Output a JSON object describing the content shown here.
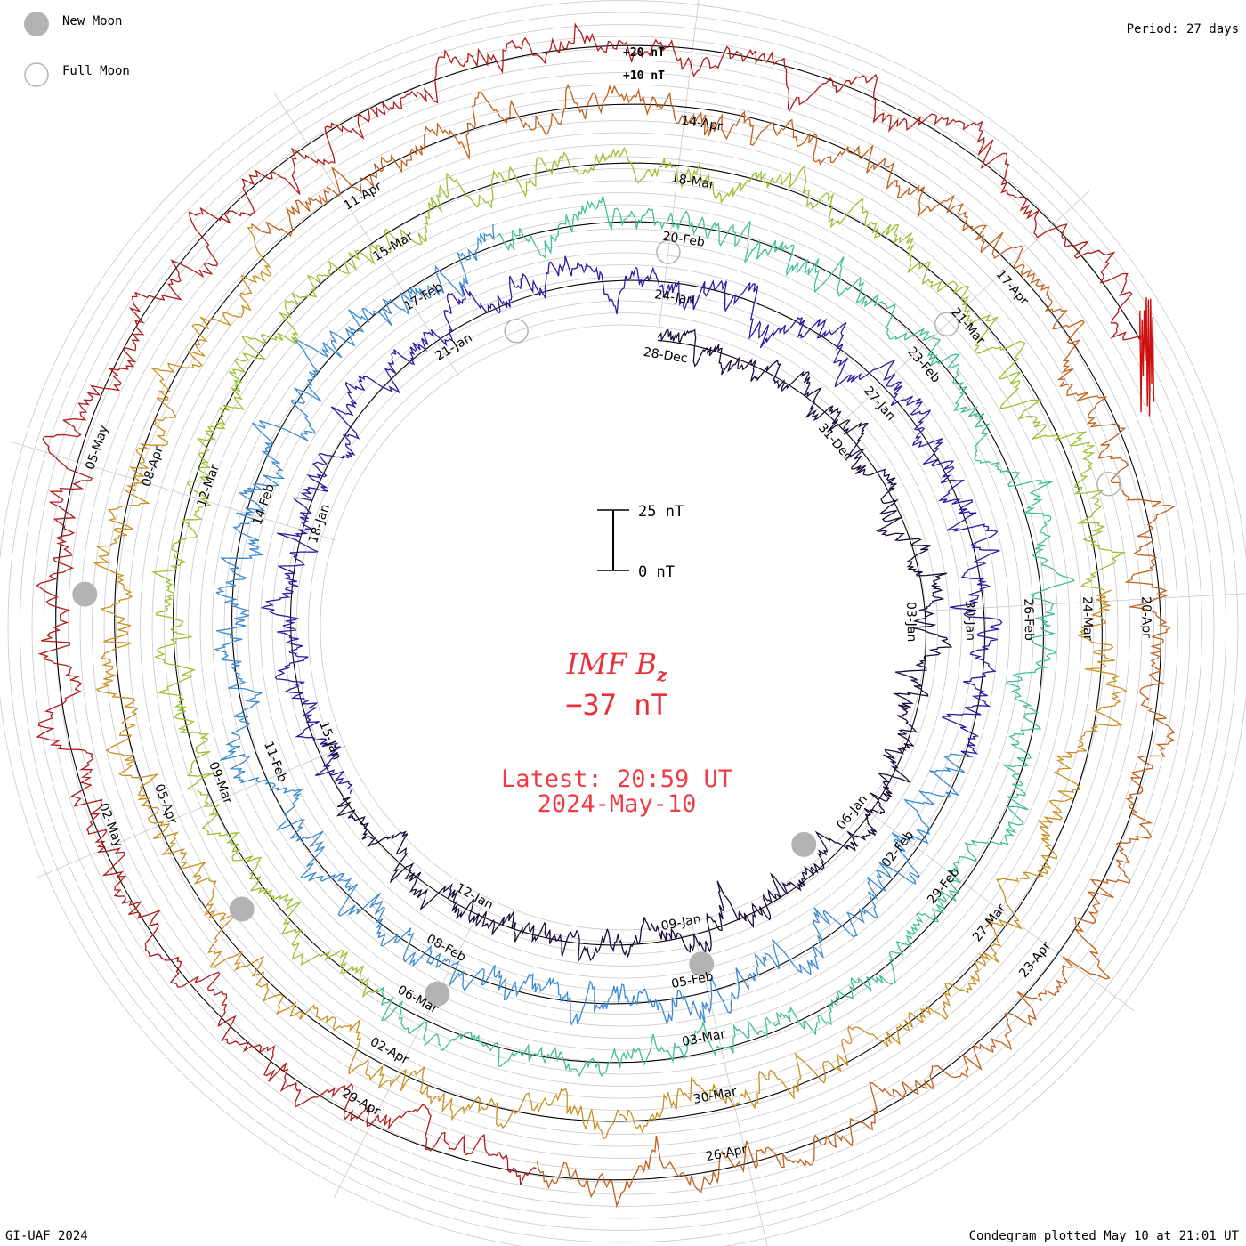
{
  "chart_data": {
    "type": "condegram",
    "title": "IMF Bz",
    "title_base": "IMF B",
    "title_subscript": "z",
    "current_value": "−37 nT",
    "latest_label": "Latest: 20:59 UT",
    "latest_date": "2024-May-10",
    "period_label": "Period: 27 days",
    "credit": "GI-UAF 2024",
    "plotted_label": "Condegram plotted May 10 at 21:01 UT",
    "legend": [
      {
        "name": "New Moon",
        "style": "filled",
        "color": "#b3b3b3"
      },
      {
        "name": "Full Moon",
        "style": "hollow",
        "color": "#b3b3b3"
      }
    ],
    "scale_bar": {
      "top_label": "25 nT",
      "bottom_label": "0 nT",
      "top_value": 25,
      "bottom_value": 0
    },
    "radial_scale": {
      "outer_labels": [
        "+20 nT",
        "+10 nT"
      ],
      "values": [
        20,
        10
      ]
    },
    "rotations": [
      {
        "index": 0,
        "color": "#1a0a3a",
        "amplitude_nT": 12,
        "date_labels": [
          "28-Dec",
          "31-Dec",
          "03-Jan",
          "06-Jan",
          "09-Jan",
          "12-Jan",
          "15-Jan",
          "18-Jan",
          "21-Jan"
        ]
      },
      {
        "index": 1,
        "color": "#2a1aa0",
        "amplitude_nT": 14,
        "date_labels": [
          "24-Jan",
          "27-Jan",
          "30-Jan",
          "02-Feb",
          "05-Feb",
          "08-Feb",
          "11-Feb",
          "14-Feb",
          "17-Feb"
        ]
      },
      {
        "index": 2,
        "color": "#3a8ad0",
        "amplitude_nT": 12,
        "date_labels": [
          "20-Feb",
          "23-Feb",
          "26-Feb",
          "29-Feb",
          "03-Mar",
          "06-Mar",
          "09-Mar",
          "12-Mar",
          "15-Mar"
        ]
      },
      {
        "index": 3,
        "color": "#40c090",
        "amplitude_nT": 14,
        "date_labels": [
          "18-Mar",
          "21-Mar",
          "24-Mar",
          "27-Mar",
          "30-Mar",
          "02-Apr",
          "05-Apr",
          "08-Apr",
          "11-Apr"
        ]
      },
      {
        "index": 4,
        "color": "#9ac030",
        "amplitude_nT": 14,
        "date_labels": [
          "14-Apr",
          "17-Apr",
          "20-Apr",
          "23-Apr",
          "26-Apr",
          "29-Apr",
          "02-May",
          "05-May"
        ]
      },
      {
        "index": 5,
        "color": "#c0601a",
        "amplitude_nT": 15,
        "date_labels": []
      }
    ],
    "segment_colors": [
      "#1a0a3a",
      "#2a1aa0",
      "#3a8ad0",
      "#40c090",
      "#9ac030",
      "#c89020",
      "#c0601a",
      "#b01a1a"
    ],
    "new_moon_days": [
      10,
      39,
      69,
      98,
      128
    ],
    "full_moon_days": [
      25,
      54,
      84,
      113
    ]
  }
}
